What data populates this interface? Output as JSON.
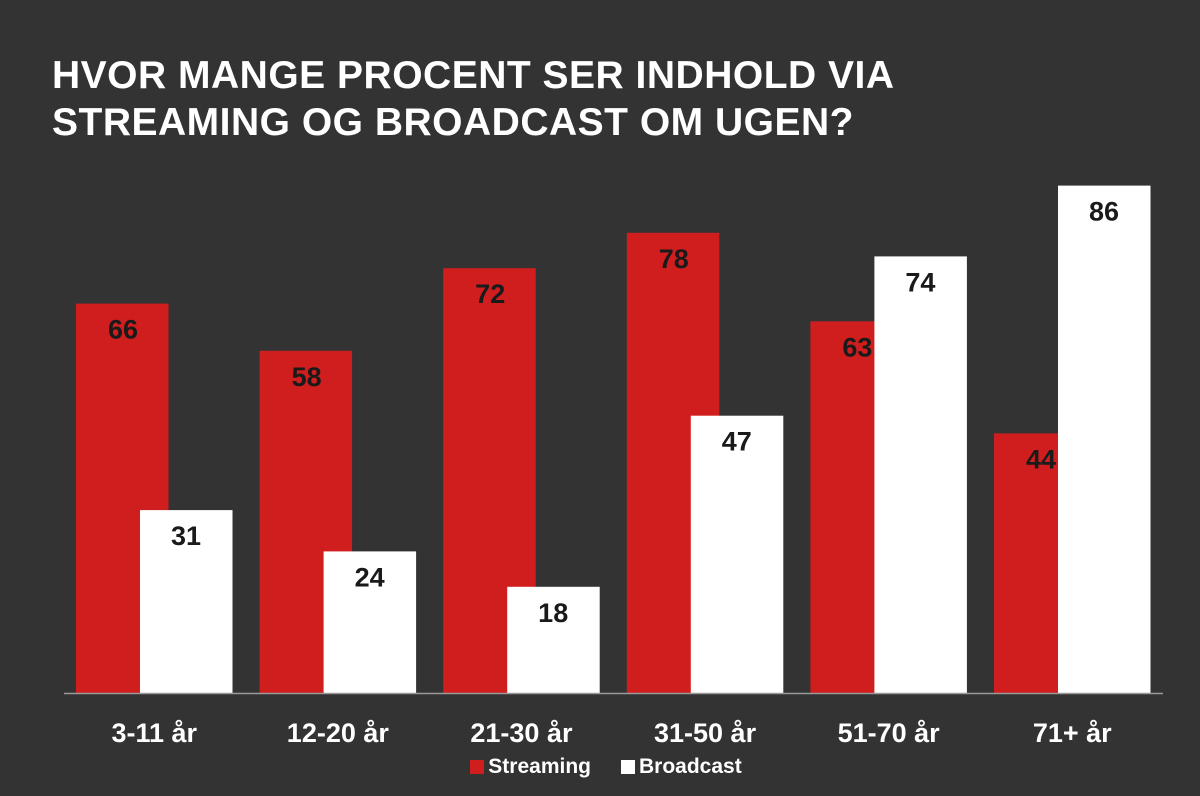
{
  "title_lines": [
    "HVOR MANGE PROCENT SER INDHOLD VIA",
    "STREAMING OG BROADCAST OM UGEN?"
  ],
  "colors": {
    "background": "#333333",
    "streaming": "#d01e1e",
    "broadcast": "#ffffff",
    "streaming_label": "#1a1a1a",
    "broadcast_label": "#1a1a1a",
    "axis": "#9a9a9a"
  },
  "chart_data": {
    "type": "bar",
    "title": "HVOR MANGE PROCENT SER INDHOLD VIA STREAMING OG BROADCAST OM UGEN?",
    "xlabel": "",
    "ylabel": "",
    "ylim": [
      0,
      100
    ],
    "grid": false,
    "legend_position": "bottom-center",
    "categories": [
      "3-11 år",
      "12-20 år",
      "21-30 år",
      "31-50 år",
      "51-70 år",
      "71+ år"
    ],
    "series": [
      {
        "name": "Streaming",
        "values": [
          66,
          58,
          72,
          78,
          63,
          44
        ]
      },
      {
        "name": "Broadcast",
        "values": [
          31,
          24,
          18,
          47,
          74,
          86
        ]
      }
    ]
  }
}
